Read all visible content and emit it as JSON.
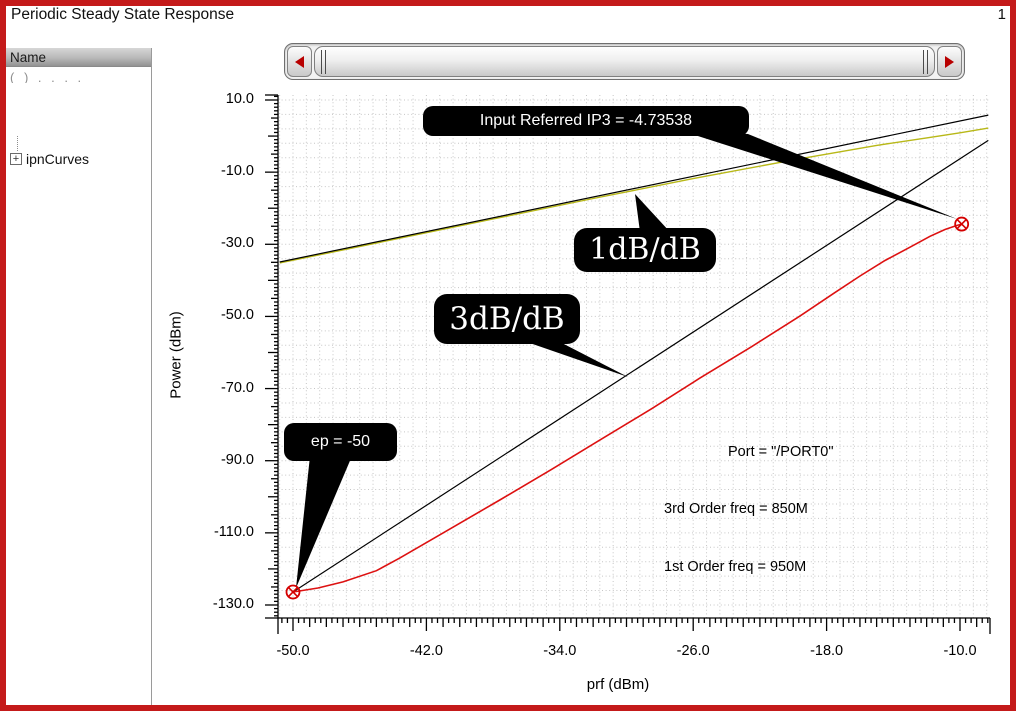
{
  "window": {
    "title": "Periodic Steady State Response",
    "page_number": "1",
    "border_color": "#c41a1a"
  },
  "sidebar": {
    "header": "Name",
    "ghost_row": "(      ) .  .   .  .",
    "items": [
      {
        "label": "ipnCurves",
        "expander": "+"
      }
    ]
  },
  "scrollbar": {
    "orientation": "horizontal"
  },
  "chart": {
    "ylabel": "Power (dBm)",
    "xlabel": "prf (dBm)",
    "y_ticks": [
      {
        "label": "10.0",
        "value": 10
      },
      {
        "label": "-10.0",
        "value": -10
      },
      {
        "label": "-30.0",
        "value": -30
      },
      {
        "label": "-50.0",
        "value": -50
      },
      {
        "label": "-70.0",
        "value": -70
      },
      {
        "label": "-90.0",
        "value": -90
      },
      {
        "label": "-110.0",
        "value": -110
      },
      {
        "label": "-130.0",
        "value": -130
      }
    ],
    "x_ticks": [
      {
        "label": "-50.0",
        "value": -50
      },
      {
        "label": "-42.0",
        "value": -42
      },
      {
        "label": "-34.0",
        "value": -34
      },
      {
        "label": "-26.0",
        "value": -26
      },
      {
        "label": "-18.0",
        "value": -18
      },
      {
        "label": "-10.0",
        "value": -10
      }
    ]
  },
  "callouts": {
    "ip3": "Input Referred IP3 = -4.73538",
    "slope1": "1dB/dB",
    "slope3": "3dB/dB",
    "ep": "ep = -50"
  },
  "annotations": {
    "port": "Port = \"/PORT0\"",
    "third_order": "3rd Order freq = 850M",
    "first_order": "1st Order freq = 950M"
  },
  "colors": {
    "first_order": "#b8b818",
    "extrapolation": "#000000",
    "third_order": "#dd1111",
    "marker": "#d40000",
    "grid": "#c6c6c6",
    "frame": "#c41a1a",
    "scroll_arrow": "#b80000"
  },
  "chart_data": {
    "type": "line",
    "title": "Periodic Steady State Response",
    "xlabel": "prf (dBm)",
    "ylabel": "Power (dBm)",
    "xlim": [
      -50,
      -10
    ],
    "ylim": [
      -130,
      10
    ],
    "x_tick_values": [
      -50,
      -42,
      -34,
      -26,
      -18,
      -10
    ],
    "y_tick_values": [
      10,
      -10,
      -30,
      -50,
      -70,
      -90,
      -110,
      -130
    ],
    "grid": "dotted",
    "input_referred_ip3": -4.73538,
    "ep_dbm": -50,
    "port": "/PORT0",
    "freq_3rd_order": "850M",
    "freq_1st_order": "950M",
    "series": [
      {
        "name": "1st order (measured)",
        "color": "#b8b818",
        "x": [
          -50.8,
          -44,
          -38,
          -32,
          -26,
          -20,
          -15,
          -12,
          -10,
          -8.3
        ],
        "y": [
          -35.2,
          -28.7,
          -23.0,
          -17.3,
          -11.8,
          -6.6,
          -2.6,
          -0.5,
          0.9,
          2.2
        ]
      },
      {
        "name": "1dB/dB extrapolation",
        "color": "#000000",
        "x": [
          -50.8,
          -8.3
        ],
        "y": [
          -34.9,
          5.8
        ]
      },
      {
        "name": "3dB/dB extrapolation",
        "color": "#000000",
        "x": [
          -50,
          -8.3
        ],
        "y": [
          -126.4,
          -1.2
        ]
      },
      {
        "name": "3rd order (measured)",
        "color": "#dd1111",
        "x": [
          -50,
          -48.5,
          -47,
          -45,
          -43.6,
          -41,
          -37.6,
          -34.5,
          -31.6,
          -28.5,
          -25.6,
          -22.5,
          -19.6,
          -17.5,
          -16,
          -14.5,
          -13,
          -11.8,
          -10.9,
          -10.2,
          -9.9
        ],
        "y": [
          -126.4,
          -125.3,
          -123.6,
          -120.5,
          -117.0,
          -110.0,
          -100.9,
          -92.4,
          -84.3,
          -75.6,
          -67.1,
          -58.4,
          -49.9,
          -43.4,
          -38.8,
          -34.5,
          -30.8,
          -27.8,
          -25.9,
          -24.8,
          -24.4
        ]
      }
    ],
    "markers": [
      {
        "x": -50,
        "y": -126.4
      },
      {
        "x": -9.9,
        "y": -24.4
      }
    ]
  }
}
